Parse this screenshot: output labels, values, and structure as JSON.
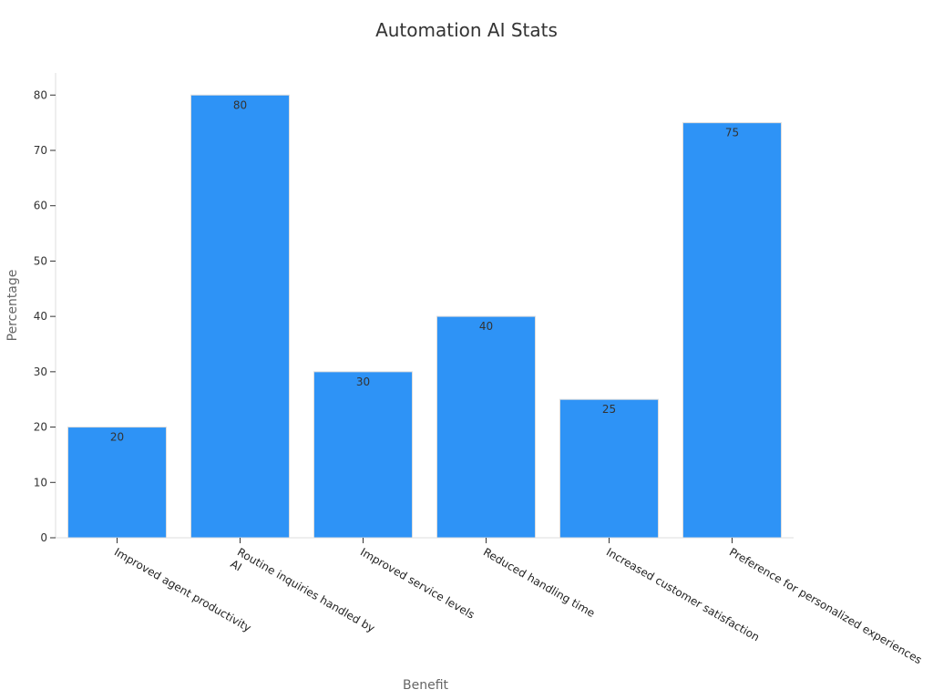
{
  "chart_data": {
    "type": "bar",
    "title": "Automation AI Stats",
    "xlabel": "Benefit",
    "ylabel": "Percentage",
    "categories": [
      [
        "Improved agent productivity"
      ],
      [
        "Routine inquiries handled by",
        "AI"
      ],
      [
        "Improved service levels"
      ],
      [
        "Reduced handling time"
      ],
      [
        "Increased customer satisfaction"
      ],
      [
        "Preference for personalized experiences"
      ]
    ],
    "values": [
      20,
      80,
      30,
      40,
      25,
      75
    ],
    "ylim": [
      0,
      84
    ],
    "yticks": [
      0,
      10,
      20,
      30,
      40,
      50,
      60,
      70,
      80
    ],
    "grid": false,
    "legend": "none",
    "bar_color": "#2e93f6",
    "bar_edge_color": "#dddddd"
  }
}
